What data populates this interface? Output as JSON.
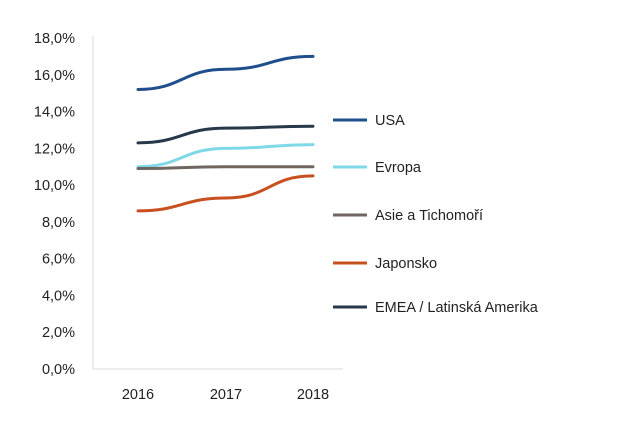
{
  "chart_data": {
    "type": "line",
    "title": "",
    "xlabel": "",
    "ylabel": "",
    "categories": [
      "2016",
      "2017",
      "2018"
    ],
    "ylim": [
      0,
      18
    ],
    "ytick_step": 2,
    "ytick_labels": [
      "0,0%",
      "2,0%",
      "4,0%",
      "6,0%",
      "8,0%",
      "10,0%",
      "12,0%",
      "14,0%",
      "16,0%",
      "18,0%"
    ],
    "grid": false,
    "legend_position": "right",
    "series": [
      {
        "name": "USA",
        "color": "#1f4e8c",
        "values": [
          15.2,
          16.3,
          17.0
        ]
      },
      {
        "name": "Evropa",
        "color": "#7fd8e8",
        "values": [
          11.0,
          12.0,
          12.2
        ]
      },
      {
        "name": "Asie a Tichomoří",
        "color": "#6f6660",
        "values": [
          10.9,
          11.0,
          11.0
        ]
      },
      {
        "name": "Japonsko",
        "color": "#c8501f",
        "values": [
          8.6,
          9.3,
          10.5
        ]
      },
      {
        "name": "EMEA / Latinská Amerika",
        "color": "#26384a",
        "values": [
          12.3,
          13.1,
          13.2
        ]
      }
    ]
  }
}
